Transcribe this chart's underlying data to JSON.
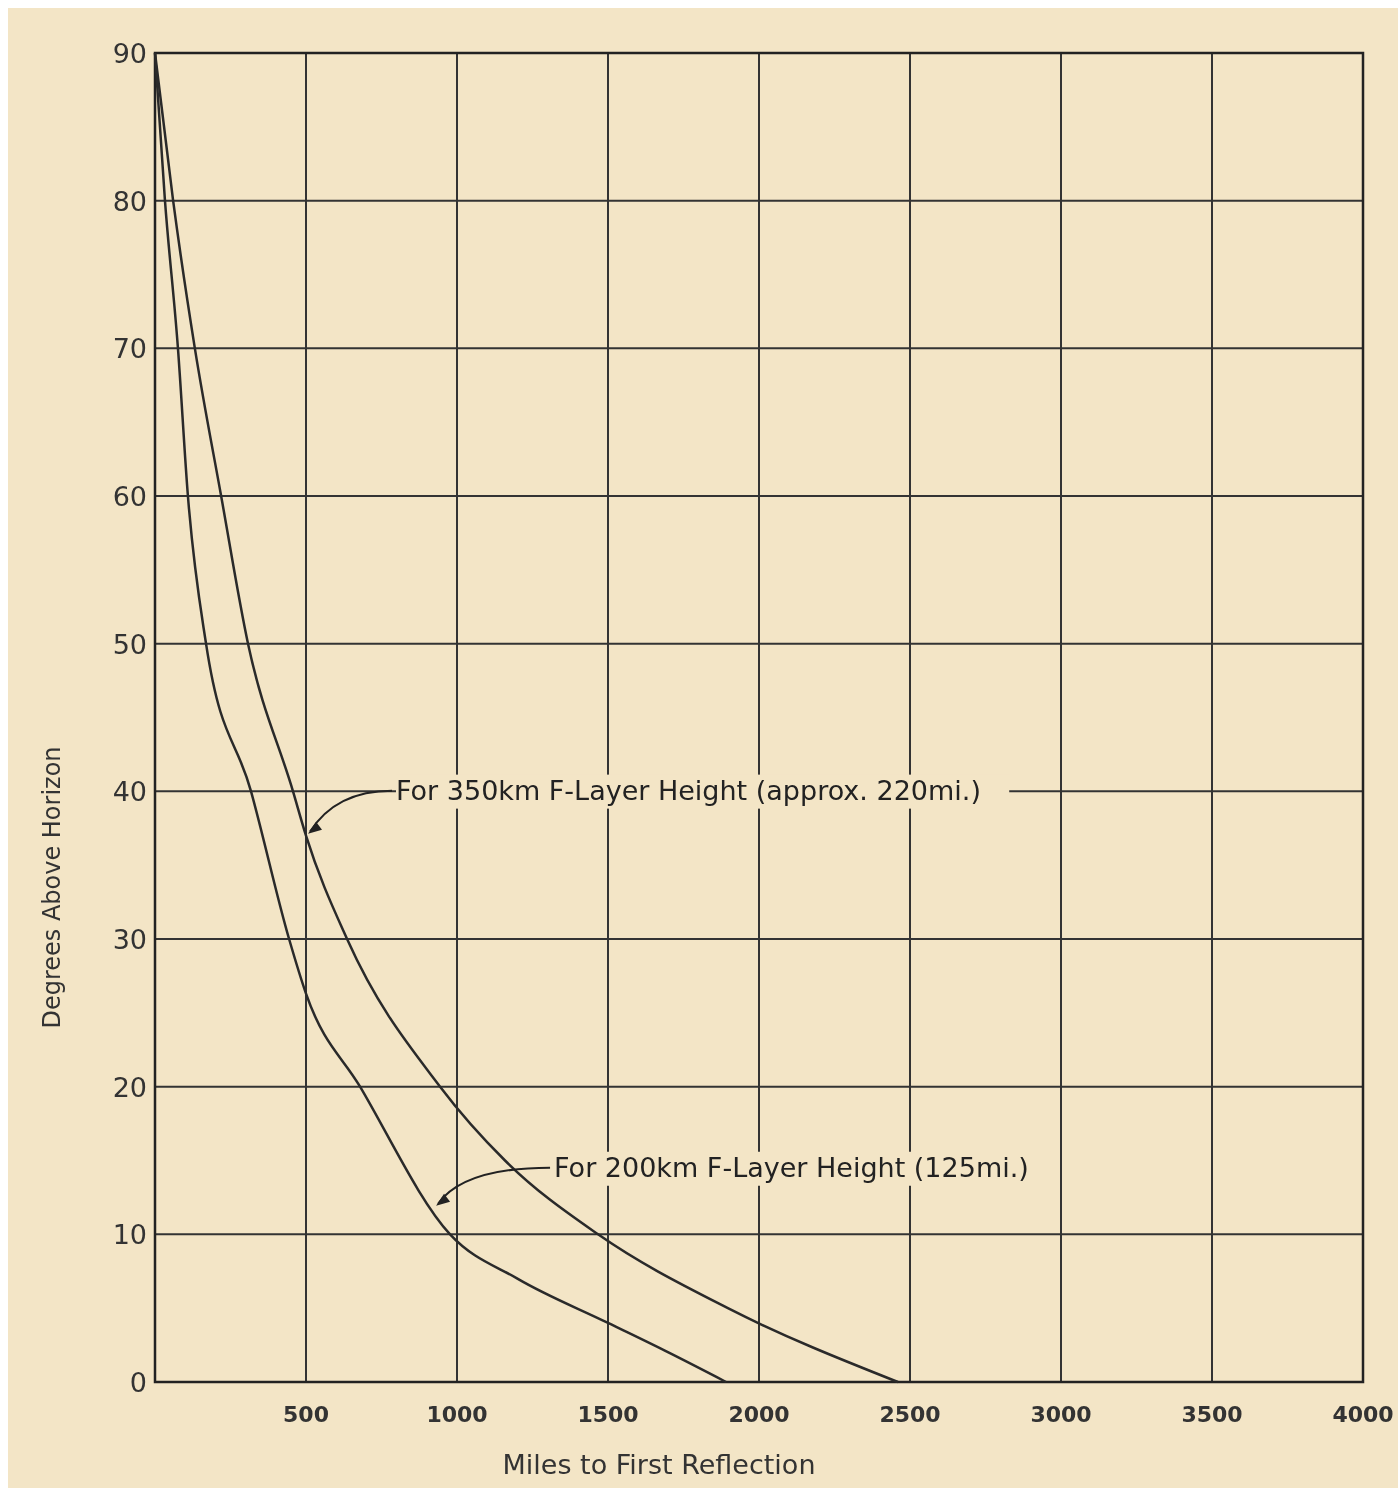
{
  "chart_data": {
    "type": "line",
    "xlabel": "Miles to First Reflection",
    "ylabel": "Degrees Above Horizon",
    "xlim": [
      0,
      4000
    ],
    "ylim": [
      0,
      90
    ],
    "xticks": [
      {
        "value": 0,
        "label": null
      },
      500,
      1000,
      1500,
      2000,
      2500,
      3000,
      3500,
      4000
    ],
    "yticks": [
      0,
      10,
      20,
      30,
      40,
      50,
      60,
      70,
      80,
      90
    ],
    "grid": true,
    "line_style": "solid",
    "series": [
      {
        "color": "#2a2a2a",
        "x": [
          0,
          60,
          132,
          219,
          308,
          457,
          500,
          636,
          944,
          1159,
          1467,
          1897,
          2460
        ],
        "values": [
          90,
          80,
          70,
          60,
          50,
          40,
          37,
          30,
          20,
          15,
          10,
          5,
          0
        ]
      },
      {
        "color": "#2a2a2a",
        "x": [
          0,
          33,
          76,
          109,
          169,
          318,
          444,
          500,
          679,
          977,
          1200,
          1500,
          1700,
          1891
        ],
        "values": [
          90,
          80,
          70,
          60,
          50,
          40,
          30,
          26.3,
          20,
          10,
          7,
          4,
          2,
          0
        ]
      }
    ],
    "annotations": [
      {
        "text": "For 350km  F-Layer Height (approx. 220mi.)",
        "x": 500,
        "y": 37
      },
      {
        "text": "For 200km  F-Layer Height (125mi.)",
        "x": 924,
        "y": 11.8
      }
    ]
  }
}
